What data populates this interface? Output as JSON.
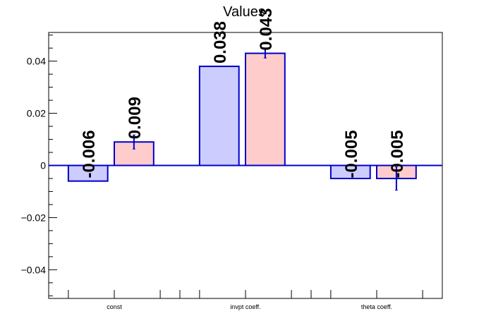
{
  "chart_data": {
    "type": "bar",
    "title": "Values",
    "categories": [
      "const",
      "invpt coeff.",
      "theta coeff."
    ],
    "series": [
      {
        "values": [
          -0.006,
          0.038,
          -0.005
        ],
        "labels": [
          "-0.006",
          "0.038",
          "-0.005"
        ],
        "errors": [
          0,
          0,
          0
        ],
        "fill": "#ccccff"
      },
      {
        "values": [
          0.009,
          0.043,
          -0.005
        ],
        "labels": [
          "0.009",
          "0.043",
          "-0.005"
        ],
        "errors": [
          0.0027,
          0.0018,
          0.0045
        ],
        "fill": "#ffcccc"
      }
    ],
    "edge_color": "#0000cc",
    "ylim": [
      -0.051,
      0.051
    ],
    "yticks": [
      -0.04,
      -0.02,
      0,
      0.02,
      0.04
    ],
    "ytick_labels": [
      "−0.04",
      "−0.02",
      "0",
      "0.02",
      "0.04"
    ],
    "xlabel": "",
    "ylabel": ""
  }
}
